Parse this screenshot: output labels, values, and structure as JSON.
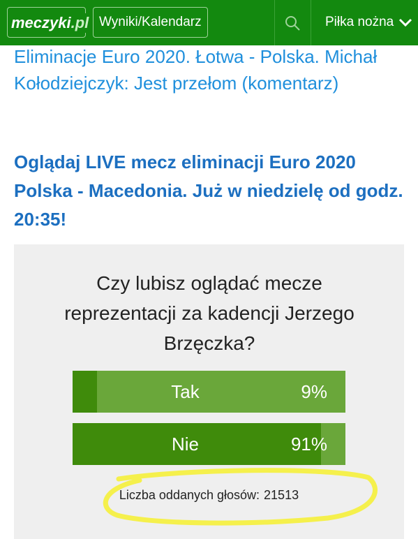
{
  "nav": {
    "logo": "meczyki",
    "logo_suffix": ".pl",
    "results": "Wyniki/Kalendarz",
    "sport": "Piłka nożna"
  },
  "articles": [
    "Eliminacje Euro 2020. Łotwa - Polska. Michał Kołodziejczyk: Jest przełom (komentarz)",
    "Oglądaj LIVE mecz eliminacji Euro 2020 Polska - Macedonia. Już w niedzielę od godz. 20:35!"
  ],
  "poll": {
    "question": "Czy lubisz oglądać mecze reprezentacji za kadencji Jerzego Brzęczka?",
    "options": [
      {
        "label": "Tak",
        "percent": 9,
        "percent_label": "9%"
      },
      {
        "label": "Nie",
        "percent": 91,
        "percent_label": "91%"
      }
    ],
    "votes_label": "Liczba oddanych głosów:",
    "votes": 21513
  }
}
